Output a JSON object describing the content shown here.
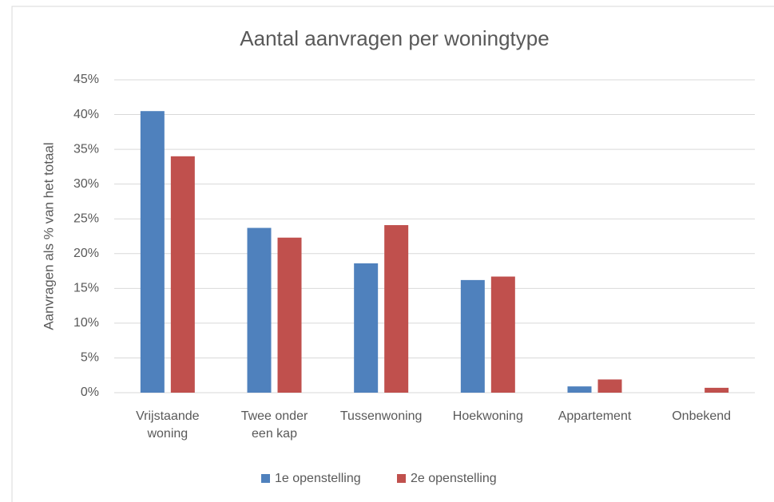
{
  "chart_data": {
    "type": "bar",
    "title": "Aantal aanvragen per woningtype",
    "y_label": "Aanvragen als % van het totaal",
    "categories": [
      "Vrijstaande woning",
      "Twee onder een kap",
      "Tussenwoning",
      "Hoekwoning",
      "Appartement",
      "Onbekend"
    ],
    "series": [
      {
        "name": "1e openstelling",
        "color": "#4f81bd",
        "values": [
          40.5,
          23.7,
          18.6,
          16.2,
          0.9,
          0
        ]
      },
      {
        "name": "2e openstelling",
        "color": "#c0504d",
        "values": [
          34,
          22.3,
          24.1,
          16.7,
          1.9,
          0.7
        ]
      }
    ],
    "ylim": [
      0,
      45
    ],
    "yticks": [
      {
        "value": 0,
        "label": "0%"
      },
      {
        "value": 5,
        "label": "5%"
      },
      {
        "value": 10,
        "label": "10%"
      },
      {
        "value": 15,
        "label": "15%"
      },
      {
        "value": 20,
        "label": "20%"
      },
      {
        "value": 25,
        "label": "25%"
      },
      {
        "value": 30,
        "label": "30%"
      },
      {
        "value": 35,
        "label": "35%"
      },
      {
        "value": 40,
        "label": "40%"
      },
      {
        "value": 45,
        "label": "45%"
      }
    ],
    "grid": true,
    "legend": "bottom"
  }
}
